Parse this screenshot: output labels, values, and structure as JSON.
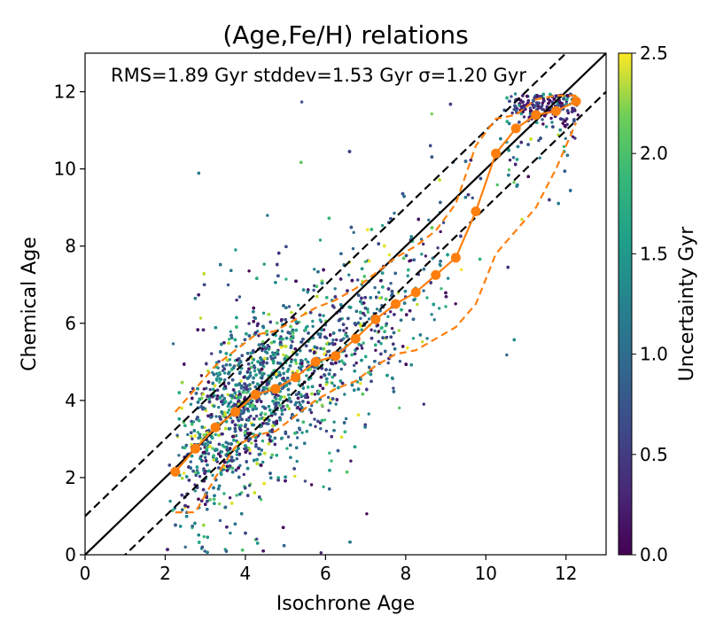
{
  "chart_data": {
    "type": "scatter",
    "title": "(Age,Fe/H) relations",
    "xlabel": "Isochrone Age",
    "ylabel": "Chemical Age",
    "xlim": [
      0,
      13
    ],
    "ylim": [
      0,
      13
    ],
    "xticks": [
      0,
      2,
      4,
      6,
      8,
      10,
      12
    ],
    "yticks": [
      0,
      2,
      4,
      6,
      8,
      10,
      12
    ],
    "annotation": "RMS=1.89 Gyr stddev=1.53 Gyr σ=1.20 Gyr",
    "colorbar": {
      "label": "Uncertainty Gyr",
      "colormap": "viridis",
      "range": [
        0.0,
        2.5
      ],
      "ticks": [
        "0.0",
        "0.5",
        "1.0",
        "1.5",
        "2.0",
        "2.5"
      ]
    },
    "scatter": {
      "n_points": 9000,
      "note": "dense cloud of individual stars, colored by uncertainty"
    },
    "reference_lines": [
      {
        "name": "one-to-one",
        "style": "solid",
        "color": "#000000",
        "offset": 0
      },
      {
        "name": "plus-one",
        "style": "dashed",
        "color": "#000000",
        "offset": 1
      },
      {
        "name": "minus-one",
        "style": "dashed",
        "color": "#000000",
        "offset": -1
      }
    ],
    "median_series": {
      "name": "binned median",
      "color": "#ff7f0e",
      "x": [
        2.25,
        2.75,
        3.25,
        3.75,
        4.25,
        4.75,
        5.25,
        5.75,
        6.25,
        6.75,
        7.25,
        7.75,
        8.25,
        8.75,
        9.25,
        9.75,
        10.25,
        10.75,
        11.25,
        11.75,
        12.25
      ],
      "y": [
        2.15,
        2.75,
        3.3,
        3.7,
        4.15,
        4.3,
        4.6,
        5.0,
        5.15,
        5.6,
        6.1,
        6.5,
        6.8,
        7.25,
        7.7,
        8.9,
        10.4,
        11.05,
        11.4,
        11.5,
        11.75
      ]
    },
    "upper_envelope": {
      "style": "dashed",
      "color": "#ff7f0e",
      "x": [
        2.25,
        2.75,
        3.25,
        3.75,
        4.25,
        4.75,
        5.25,
        5.75,
        6.25,
        6.75,
        7.25,
        7.75,
        8.25,
        8.75,
        9.25,
        9.75,
        10.25,
        10.75,
        11.25,
        11.75,
        12.25
      ],
      "y": [
        3.7,
        4.3,
        4.9,
        5.3,
        5.7,
        5.8,
        6.1,
        6.4,
        6.6,
        6.9,
        7.3,
        7.7,
        8.0,
        8.4,
        9.1,
        10.6,
        11.3,
        11.4,
        11.8,
        11.9,
        11.9
      ]
    },
    "lower_envelope": {
      "style": "dashed",
      "color": "#ff7f0e",
      "x": [
        2.25,
        2.75,
        3.25,
        3.75,
        4.25,
        4.75,
        5.25,
        5.75,
        6.25,
        6.75,
        7.25,
        7.75,
        8.25,
        8.75,
        9.25,
        9.75,
        10.25,
        10.75,
        11.25,
        11.75,
        12.25
      ],
      "y": [
        1.1,
        1.1,
        2.0,
        2.8,
        3.1,
        3.2,
        3.6,
        4.0,
        4.3,
        4.5,
        4.9,
        5.2,
        5.3,
        5.6,
        5.9,
        6.5,
        7.8,
        8.4,
        9.0,
        10.0,
        11.2
      ]
    }
  }
}
